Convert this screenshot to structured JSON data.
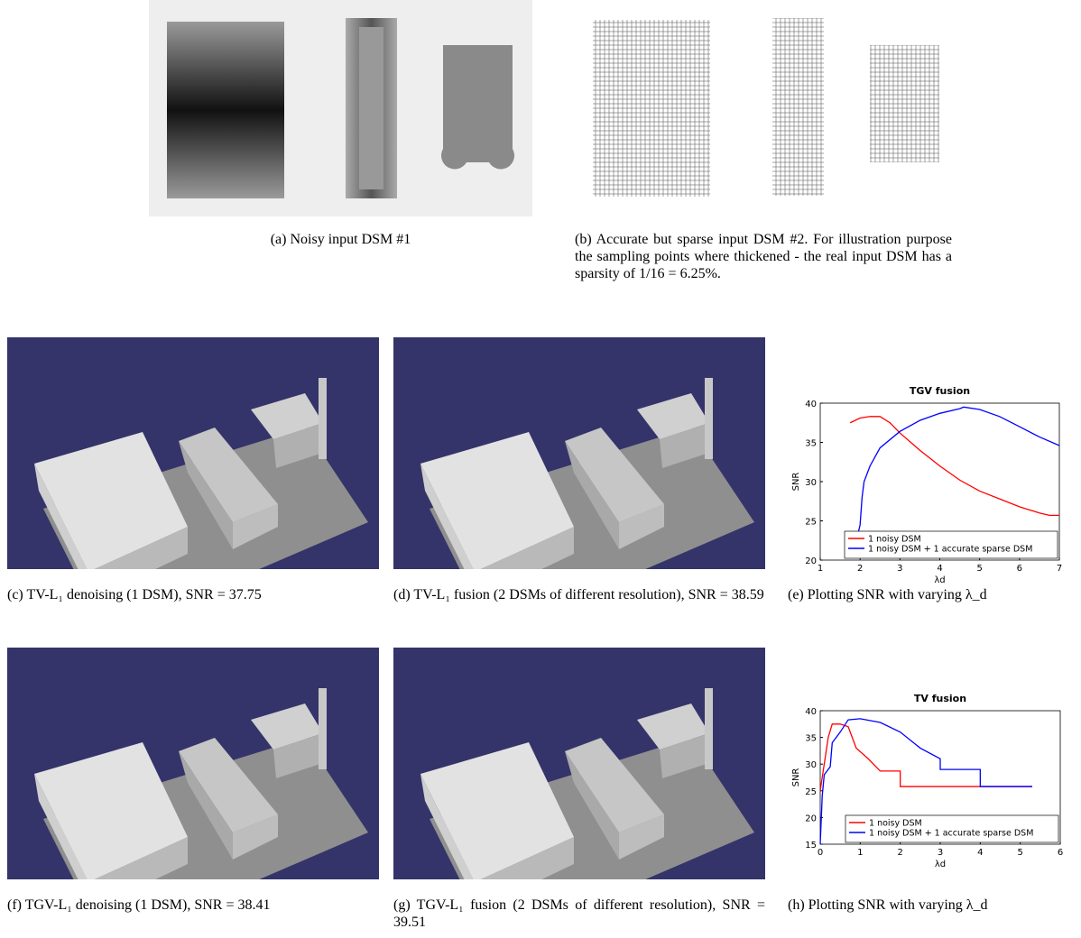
{
  "captions": {
    "a": "(a) Noisy input DSM #1",
    "b": "(b) Accurate but sparse input DSM #2. For illustration purpose the sampling points where thickened - the real input DSM has a sparsity of 1/16 = 6.25%.",
    "c": "(c) TV-L₁ denoising (1 DSM), SNR = 37.75",
    "d": "(d) TV-L₁ fusion (2 DSMs of different resolution), SNR = 38.59",
    "e": "(e) Plotting SNR with varying λ_d",
    "f": "(f) TGV-L₁ denoising (1 DSM), SNR = 38.41",
    "g": "(g) TGV-L₁ fusion (2 DSMs of different resolution), SNR = 39.51",
    "h": "(h) Plotting SNR with varying λ_d"
  },
  "chart_data": [
    {
      "type": "line",
      "title": "TGV fusion",
      "xlabel": "λd",
      "ylabel": "SNR",
      "xlim": [
        1,
        7
      ],
      "xticks": [
        1,
        2,
        3,
        4,
        5,
        6,
        7
      ],
      "ylim": [
        20,
        40
      ],
      "yticks": [
        20,
        25,
        30,
        35,
        40
      ],
      "legend": "lower right",
      "series": [
        {
          "name": "1 noisy DSM",
          "color": "#ff0000",
          "x": [
            1.75,
            2.0,
            2.25,
            2.5,
            2.75,
            3.0,
            3.5,
            4.0,
            4.5,
            5.0,
            5.5,
            6.0,
            6.5,
            6.75,
            7.0
          ],
          "values": [
            37.5,
            38.1,
            38.3,
            38.3,
            37.5,
            36.2,
            34,
            32,
            30.2,
            28.8,
            27.8,
            26.8,
            26,
            25.7,
            25.7
          ]
        },
        {
          "name": "1 noisy DSM + 1 accurate sparse DSM",
          "color": "#0000ff",
          "x": [
            1.75,
            1.9,
            2.0,
            2.05,
            2.1,
            2.25,
            2.5,
            3.0,
            3.5,
            4.0,
            4.5,
            4.6,
            5.0,
            5.5,
            6.0,
            6.5,
            7.0
          ],
          "values": [
            22.3,
            22.3,
            24.5,
            28,
            30,
            32,
            34.3,
            36.4,
            37.8,
            38.7,
            39.3,
            39.5,
            39.2,
            38.3,
            37,
            35.7,
            34.6
          ]
        }
      ]
    },
    {
      "type": "line",
      "title": "TV fusion",
      "xlabel": "λd",
      "ylabel": "SNR",
      "xlim": [
        0,
        6
      ],
      "xticks": [
        0,
        1,
        2,
        3,
        4,
        5,
        6
      ],
      "ylim": [
        15,
        40
      ],
      "yticks": [
        15,
        20,
        25,
        30,
        35,
        40
      ],
      "legend": "lower right",
      "series": [
        {
          "name": "1 noisy DSM",
          "color": "#ff0000",
          "x": [
            0,
            0.1,
            0.2,
            0.3,
            0.5,
            0.7,
            0.9,
            1.2,
            1.5,
            2.0,
            2.0,
            5.3
          ],
          "values": [
            25,
            30,
            35,
            37.5,
            37.5,
            37,
            33,
            31,
            28.7,
            28.7,
            25.8,
            25.8
          ]
        },
        {
          "name": "1 noisy DSM + 1 accurate sparse DSM",
          "color": "#0000ff",
          "x": [
            0,
            0.05,
            0.1,
            0.25,
            0.3,
            0.5,
            0.7,
            1.0,
            1.5,
            2.0,
            2.5,
            3.0,
            3.0,
            4.0,
            4.0,
            5.3
          ],
          "values": [
            15,
            24,
            28,
            29.5,
            34,
            36,
            38.3,
            38.5,
            37.8,
            36,
            33,
            31,
            29,
            29,
            25.8,
            25.8
          ]
        }
      ]
    }
  ]
}
